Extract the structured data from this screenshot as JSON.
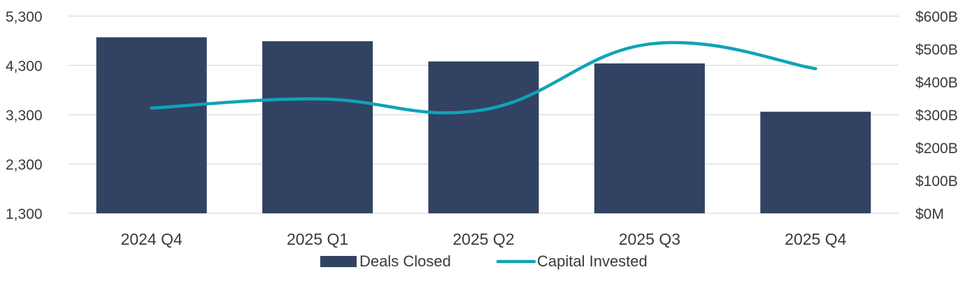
{
  "chart_data": {
    "type": "bar",
    "categories": [
      "2024 Q4",
      "2025 Q1",
      "2025 Q2",
      "2025 Q3",
      "2025 Q4"
    ],
    "series": [
      {
        "name": "Deals Closed",
        "type": "bar",
        "axis": "left",
        "color": "#324262",
        "values": [
          4870,
          4790,
          4380,
          4340,
          3360
        ]
      },
      {
        "name": "Capital Invested",
        "type": "line",
        "smooth": true,
        "axis": "right",
        "color": "#0fa3b8",
        "values": [
          320,
          348,
          315,
          515,
          440
        ]
      }
    ],
    "y_left": {
      "ylim": [
        1300,
        5300
      ],
      "ticks": [
        1300,
        2300,
        3300,
        4300,
        5300
      ],
      "tick_labels": [
        "1,300",
        "2,300",
        "3,300",
        "4,300",
        "5,300"
      ]
    },
    "y_right": {
      "ylim": [
        0,
        600
      ],
      "ticks": [
        0,
        100,
        200,
        300,
        400,
        500,
        600
      ],
      "tick_labels": [
        "$0M",
        "$100B",
        "$200B",
        "$300B",
        "$400B",
        "$500B",
        "$600B"
      ]
    },
    "grid": true,
    "legend": {
      "position": "bottom",
      "entries": [
        {
          "label": "Deals Closed",
          "marker": "bar",
          "color": "#324262"
        },
        {
          "label": "Capital Invested",
          "marker": "line",
          "color": "#0fa3b8"
        }
      ]
    }
  }
}
